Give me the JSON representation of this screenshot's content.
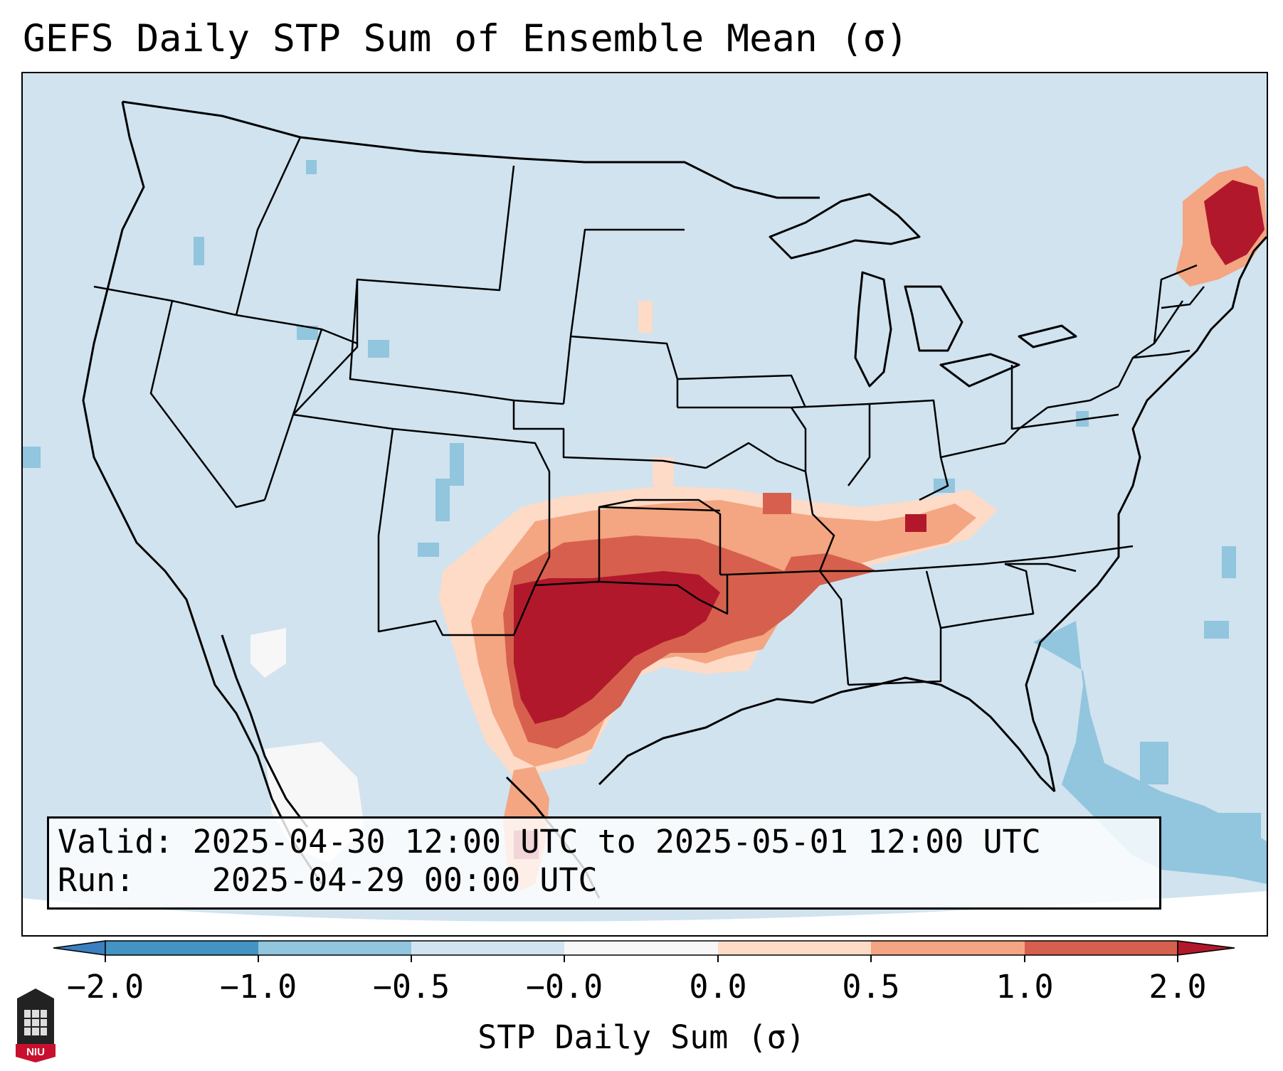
{
  "title": "GEFS Daily STP Sum of Ensemble Mean (σ)",
  "info": {
    "valid_label": "Valid:",
    "valid_value": "2025-04-30 12:00 UTC to 2025-05-01 12:00 UTC",
    "run_label": "Run:",
    "run_value": "2025-04-29 00:00 UTC"
  },
  "colorbar": {
    "title": "STP Daily Sum (σ)",
    "tick_labels": [
      "−2.0",
      "−1.0",
      "−0.5",
      "−0.0",
      "0.0",
      "0.5",
      "1.0",
      "2.0"
    ],
    "colors": {
      "under": "#3b7fbf",
      "bin_neg2_neg1": "#4393c3",
      "bin_neg1_neg05": "#92c5de",
      "bin_neg05_0": "#d1e5f0",
      "bin_zero": "#f7f7f7",
      "bin_0_05": "#fddbc7",
      "bin_05_1": "#f4a582",
      "bin_1_2": "#d6604d",
      "over": "#b2182b"
    }
  },
  "logo": {
    "text": "NIU",
    "brand_color": "#c8102e"
  },
  "map": {
    "background_color": "#d0e3ef",
    "outline_color": "#000000"
  }
}
